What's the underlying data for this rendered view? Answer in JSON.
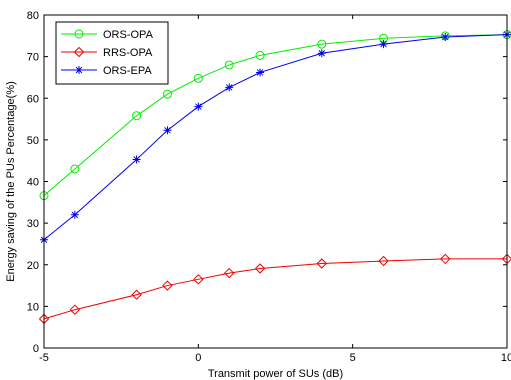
{
  "chart_data": {
    "type": "line",
    "title": "",
    "xlabel": "Transmit power of SUs (dB)",
    "ylabel": "Energy saving of the PUs Percentage(%)",
    "xlim": [
      -5,
      10
    ],
    "ylim": [
      0,
      80
    ],
    "xticks": [
      -5,
      0,
      5,
      10
    ],
    "yticks": [
      0,
      10,
      20,
      30,
      40,
      50,
      60,
      70,
      80
    ],
    "grid": false,
    "legend_position": "top-left",
    "x": [
      -5,
      -4,
      -2,
      -1,
      0,
      1,
      2,
      4,
      6,
      8,
      10
    ],
    "series": [
      {
        "name": "ORS-OPA",
        "color": "#00ee00",
        "marker": "circle",
        "values": [
          36.6,
          43,
          55.8,
          61,
          64.8,
          68,
          70.3,
          73,
          74.4,
          75,
          75.3
        ]
      },
      {
        "name": "RRS-OPA",
        "color": "#ee0000",
        "marker": "diamond",
        "values": [
          7,
          9.2,
          12.8,
          15,
          16.5,
          18,
          19.1,
          20.3,
          20.9,
          21.4,
          21.4
        ]
      },
      {
        "name": "ORS-EPA",
        "color": "#0000ee",
        "marker": "star",
        "values": [
          26,
          32,
          45.3,
          52.3,
          58,
          62.6,
          66.2,
          70.8,
          73,
          74.7,
          75.3
        ]
      }
    ]
  }
}
